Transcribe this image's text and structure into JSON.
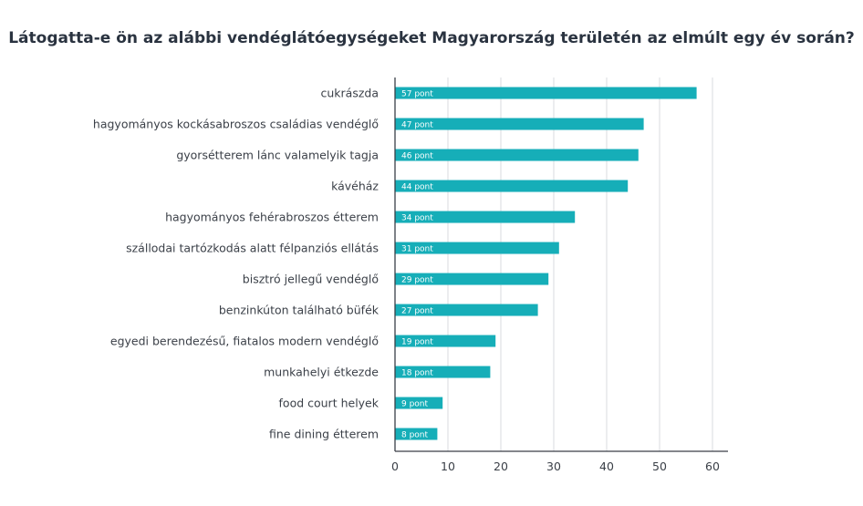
{
  "chart_data": {
    "type": "bar",
    "orientation": "horizontal",
    "title": "Látogatta-e ön az alábbi vendéglátóegységeket Magyarország területén az elmúlt egy év során?",
    "xlabel": "",
    "ylabel": "",
    "categories": [
      "cukrászda",
      "hagyományos kockásabroszos családias vendéglő",
      "gyorsétterem lánc valamelyik tagja",
      "kávéház",
      "hagyományos fehérabroszos étterem",
      "szállodai tartózkodás alatt félpanziós ellátás",
      "bisztró jellegű vendéglő",
      "benzinkúton található büfék",
      "egyedi berendezésű, fiatalos modern vendéglő",
      "munkahelyi étkezde",
      "food court helyek",
      "fine dining étterem"
    ],
    "values": [
      57,
      47,
      46,
      44,
      34,
      31,
      29,
      27,
      19,
      18,
      9,
      8
    ],
    "value_labels": [
      "57 pont",
      "47 pont",
      "46 pont",
      "44 pont",
      "34 pont",
      "31 pont",
      "29 pont",
      "27 pont",
      "19 pont",
      "18 pont",
      "9 pont",
      "8 pont"
    ],
    "xlim": [
      0,
      63
    ],
    "xticks": [
      "0",
      "10",
      "20",
      "30",
      "40",
      "50",
      "60"
    ],
    "grid": true,
    "legend": "none",
    "bar_color": "#16aeb8",
    "grid_color": "#e3e5e8",
    "axis_color": "#3a3f47"
  }
}
